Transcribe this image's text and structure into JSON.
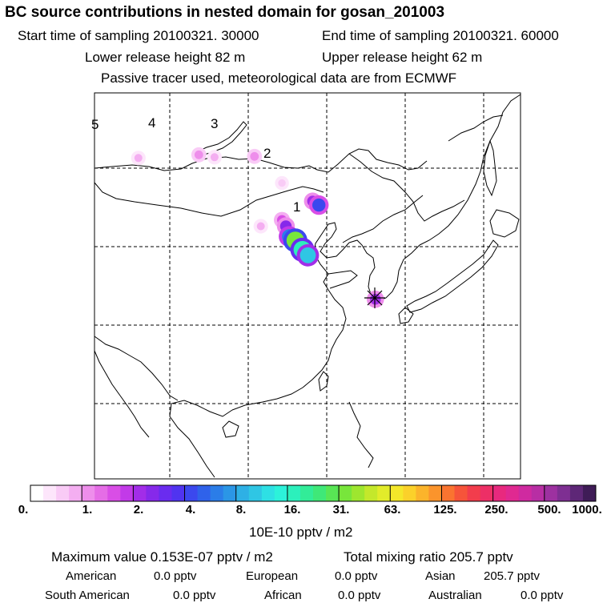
{
  "header": {
    "title": "BC  source contributions in nested domain for gosan_201003",
    "start_label": "Start time of sampling 20100321. 30000",
    "end_label": "End time of sampling 20100321. 60000",
    "lower_label": "Lower release height   82 m",
    "upper_label": "Upper release height   62 m",
    "tracer_label": "Passive tracer used, meteorological data are from ECMWF"
  },
  "chart_data": {
    "type": "heatmap",
    "title": "BC  source contributions in nested domain for gosan_201003",
    "colorbar_unit": "10E-10 pptv / m2",
    "colorbar_ticks": [
      "0.",
      "1.",
      "2.",
      "4.",
      "8.",
      "16.",
      "31.",
      "63.",
      "125.",
      "250.",
      "500.",
      "1000."
    ],
    "colorbar_colors": [
      "#ffffff",
      "#fde6fb",
      "#f9cbf6",
      "#f4aef1",
      "#ee8eeb",
      "#e56de6",
      "#d94ee6",
      "#c23ae8",
      "#a22de8",
      "#8629ea",
      "#6a2cef",
      "#5034f0",
      "#3b48ee",
      "#2f62ea",
      "#2b7de8",
      "#2b96e6",
      "#2eb0e5",
      "#2fc6e4",
      "#2ee0e4",
      "#2cf2da",
      "#2cf0bc",
      "#32ec98",
      "#3fe878",
      "#58e655",
      "#78e63b",
      "#9ee62f",
      "#c4e82b",
      "#e2ec2a",
      "#f4e72a",
      "#fbd12a",
      "#fbb42b",
      "#fb942c",
      "#fa7430",
      "#f6543a",
      "#f23d4c",
      "#ed2f66",
      "#e8297e",
      "#e02991",
      "#cf2aa0",
      "#b82ea4",
      "#9d31a0",
      "#7e2f92",
      "#5e2777",
      "#3f1c57"
    ],
    "contour_labels": [
      "5",
      "4",
      "3",
      "2",
      "1"
    ],
    "receptor": "gosan",
    "plumes": [
      {
        "lon": 111.6,
        "lat": 42.6,
        "level": 3
      },
      {
        "lon": 114.3,
        "lat": 43.4,
        "level": 6
      },
      {
        "lon": 114.8,
        "lat": 42.6,
        "level": 9
      },
      {
        "lon": 115.2,
        "lat": 41.3,
        "level": 14
      },
      {
        "lon": 116.0,
        "lat": 40.8,
        "level": 24
      },
      {
        "lon": 116.9,
        "lat": 39.6,
        "level": 20
      },
      {
        "lon": 117.6,
        "lat": 38.9,
        "level": 17
      },
      {
        "lon": 118.2,
        "lat": 45.8,
        "level": 8
      },
      {
        "lon": 119.0,
        "lat": 45.3,
        "level": 12
      },
      {
        "lon": 96.0,
        "lat": 51.3,
        "level": 3
      },
      {
        "lon": 103.7,
        "lat": 51.7,
        "level": 4
      },
      {
        "lon": 105.7,
        "lat": 51.4,
        "level": 3
      },
      {
        "lon": 110.8,
        "lat": 51.5,
        "level": 4
      },
      {
        "lon": 114.3,
        "lat": 48.1,
        "level": 2
      },
      {
        "lon": 126.2,
        "lat": 33.3,
        "level": 8
      }
    ]
  },
  "stats": {
    "max_label": "Maximum value  0.153E-07 pptv / m2",
    "total_label": "Total mixing ratio     205.7 pptv",
    "american_label": "American",
    "american_value": "0.0 pptv",
    "european_label": "European",
    "european_value": "0.0 pptv",
    "asian_label": "Asian",
    "asian_value": "205.7 pptv",
    "south_american_label": "South American",
    "south_american_value": "0.0 pptv",
    "african_label": "African",
    "african_value": "0.0 pptv",
    "australian_label": "Australian",
    "australian_value": "0.0 pptv"
  },
  "colors": {
    "frame": "#000000",
    "grid": "#000000"
  }
}
